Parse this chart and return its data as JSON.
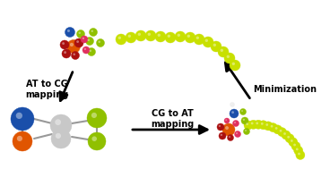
{
  "bg_color": "white",
  "label_at_cg": "AT to CG\nmapping",
  "label_cg_at": "CG to AT\nmapping",
  "label_min": "Minimization",
  "figsize": [
    3.68,
    1.89
  ],
  "dpi": 100,
  "colors": {
    "blue_N": "#1a4faa",
    "orange_P": "#e05500",
    "gray_bead": "#c8c8c8",
    "lime_bead": "#90c000",
    "lime_tail": "#c8e000",
    "pink_O": "#e03060",
    "dark_red": "#aa1010",
    "white_H": "#eeeeee",
    "bond": "#999999"
  }
}
